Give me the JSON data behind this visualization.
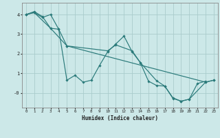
{
  "xlabel": "Humidex (Indice chaleur)",
  "bg_color": "#cce8e8",
  "line_color": "#2a7a7a",
  "grid_color": "#aacccc",
  "xlim": [
    -0.5,
    23.5
  ],
  "ylim": [
    -0.75,
    4.6
  ],
  "xticks": [
    0,
    1,
    2,
    3,
    4,
    5,
    6,
    7,
    8,
    9,
    10,
    11,
    12,
    13,
    14,
    15,
    16,
    17,
    18,
    19,
    20,
    21,
    22,
    23
  ],
  "yticks": [
    0,
    1,
    2,
    3,
    4
  ],
  "ytick_labels": [
    "-0",
    "1",
    "2",
    "3",
    "4"
  ],
  "lines": [
    {
      "x": [
        0,
        1,
        2,
        3,
        4,
        5,
        6,
        7,
        8,
        9,
        10,
        11,
        12,
        13,
        14,
        15,
        16,
        17,
        18,
        19,
        20,
        21,
        22
      ],
      "y": [
        4.0,
        4.15,
        3.9,
        3.3,
        3.25,
        0.65,
        0.9,
        0.55,
        0.65,
        1.4,
        2.1,
        2.5,
        2.9,
        2.1,
        1.55,
        0.6,
        0.38,
        0.35,
        -0.28,
        -0.42,
        -0.32,
        0.48,
        0.6
      ]
    },
    {
      "x": [
        0,
        1,
        2,
        3,
        4,
        5,
        22,
        23
      ],
      "y": [
        4.0,
        4.1,
        3.85,
        4.0,
        3.25,
        2.4,
        0.55,
        0.65
      ]
    },
    {
      "x": [
        0,
        1,
        3,
        5,
        10,
        11,
        13,
        14,
        16,
        17,
        18,
        19,
        20,
        22,
        23
      ],
      "y": [
        4.0,
        4.1,
        3.3,
        2.4,
        2.15,
        2.45,
        2.15,
        1.55,
        0.62,
        0.35,
        -0.25,
        -0.42,
        -0.32,
        0.55,
        0.65
      ]
    }
  ]
}
